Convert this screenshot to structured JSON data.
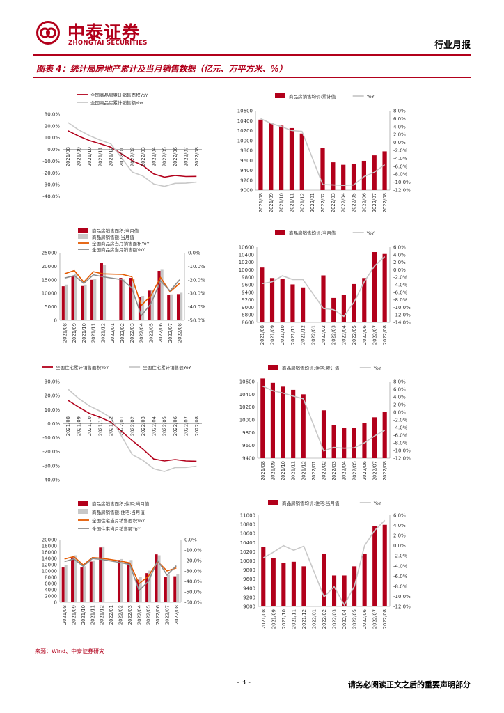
{
  "header": {
    "company_cn": "中泰证券",
    "company_en": "ZHONGTAI SECURITIES",
    "report_type": "行业月报",
    "brand_color": "#b2001b"
  },
  "figure": {
    "title": "图表 4：统计局房地产累计及当月销售数据（亿元、万平方米、%）"
  },
  "source": "来源：Wind、中泰证券研究",
  "footer": {
    "page": "- 3 -",
    "disclaimer": "请务必阅读正文之后的重要声明部分"
  },
  "chart_data": [
    {
      "type": "line",
      "categories": [
        "2021/08",
        "2021/09",
        "2021/10",
        "2021/11",
        "2021/12",
        "2022/01",
        "2022/02",
        "2022/03",
        "2022/04",
        "2022/05",
        "2022/06",
        "2022/07",
        "2022/08"
      ],
      "y_ticks": [
        "30.0%",
        "20.0%",
        "10.0%",
        "0.0%",
        "-10.0%",
        "-20.0%",
        "-30.0%",
        "-40.0%"
      ],
      "ylim": [
        -40,
        30
      ],
      "legend_position": "top",
      "series": [
        {
          "name": "全国商品房累计销售面积YoY",
          "color": "#b2001b",
          "values": [
            15.9,
            11.3,
            7.5,
            4.8,
            1.9,
            null,
            -9.6,
            -13.8,
            -20.9,
            -23.6,
            -22.2,
            -23.1,
            -23.0
          ]
        },
        {
          "name": "全国商品房累计销售额YoY",
          "color": "#c8c8c8",
          "values": [
            22.9,
            16.6,
            11.8,
            8.0,
            4.8,
            null,
            -19.3,
            -22.7,
            -29.5,
            -31.5,
            -28.9,
            -28.8,
            -27.9
          ]
        }
      ]
    },
    {
      "type": "bar+line",
      "categories": [
        "2021/08",
        "2021/09",
        "2021/10",
        "2021/11",
        "2021/12",
        "2022/01",
        "2022/02",
        "2022/03",
        "2022/04",
        "2022/05",
        "2022/06",
        "2022/07",
        "2022/08"
      ],
      "left_ticks": [
        "10600",
        "10400",
        "10200",
        "10000",
        "9800",
        "9600",
        "9400",
        "9200",
        "9000"
      ],
      "right_ticks": [
        "8.0%",
        "6.0%",
        "4.0%",
        "2.0%",
        "0.0%",
        "-2.0%",
        "-4.0%",
        "-6.0%",
        "-8.0%",
        "-10.0%",
        "-12.0%"
      ],
      "ylim_left": [
        9000,
        10600
      ],
      "ylim_right": [
        -12,
        8
      ],
      "legend_position": "top",
      "bars": {
        "name": "商品房销售均价:累计值",
        "color": "#b2001b",
        "values": [
          10420,
          10350,
          10300,
          10250,
          10140,
          null,
          9850,
          9560,
          9510,
          9530,
          9590,
          9700,
          9780
        ]
      },
      "line": {
        "name": "YoY",
        "color": "#c8c8c8",
        "values": [
          6.0,
          4.8,
          4.0,
          3.0,
          2.8,
          null,
          -10.6,
          -10.7,
          -10.8,
          -10.7,
          -8.6,
          -7.5,
          -5.6
        ]
      }
    },
    {
      "type": "bar+line",
      "categories": [
        "2021/08",
        "2021/09",
        "2021/10",
        "2021/11",
        "2021/12",
        "2022/01",
        "2022/02",
        "2022/03",
        "2022/04",
        "2022/05",
        "2022/06",
        "2022/07",
        "2022/08"
      ],
      "left_ticks": [
        "25000",
        "20000",
        "15000",
        "10000",
        "5000",
        "0"
      ],
      "right_ticks": [
        "0.0%",
        "-10.0%",
        "-20.0%",
        "-30.0%",
        "-40.0%",
        "-50.0%"
      ],
      "ylim_left": [
        0,
        25000
      ],
      "ylim_right": [
        -50,
        0
      ],
      "legend_position": "top",
      "bars": [
        {
          "name": "商品房销售面积:当月值",
          "color": "#b2001b",
          "values": [
            12600,
            16200,
            12700,
            15000,
            21300,
            null,
            15700,
            15700,
            8600,
            11000,
            18300,
            9300,
            9700
          ]
        },
        {
          "name": "商品房销售额:当月值",
          "color": "#c8c8c8",
          "values": [
            13200,
            17300,
            13200,
            15400,
            20400,
            null,
            15100,
            15200,
            9000,
            11200,
            18700,
            9600,
            10200
          ]
        }
      ],
      "lines": [
        {
          "name": "全国商品房当月销售面积YoY",
          "color": "#e35a00",
          "values": [
            -15.5,
            -13.2,
            -21.7,
            -14.0,
            -15.6,
            null,
            -16.0,
            -17.7,
            -39.0,
            -31.8,
            -18.3,
            -28.9,
            -22.6
          ]
        },
        {
          "name": "全国商品房当月销售额YoY",
          "color": "#8c8c8c",
          "values": [
            -18.7,
            -16.9,
            -22.7,
            -16.3,
            -17.8,
            null,
            -19.9,
            -26.1,
            -46.6,
            -37.7,
            -20.8,
            -28.2,
            -19.9
          ]
        }
      ]
    },
    {
      "type": "bar+line",
      "categories": [
        "2021/08",
        "2021/09",
        "2021/10",
        "2021/11",
        "2021/12",
        "2022/01",
        "2022/02",
        "2022/03",
        "2022/04",
        "2022/05",
        "2022/06",
        "2022/07",
        "2022/08"
      ],
      "left_ticks": [
        "10600",
        "10400",
        "10200",
        "10000",
        "9800",
        "9600",
        "9400",
        "9200",
        "9000",
        "8800",
        "8600"
      ],
      "right_ticks": [
        "6.0%",
        "4.0%",
        "2.0%",
        "0.0%",
        "-2.0%",
        "-4.0%",
        "-6.0%",
        "-8.0%",
        "-10.0%",
        "-12.0%",
        "-14.0%"
      ],
      "ylim_left": [
        8600,
        10600
      ],
      "ylim_right": [
        -14,
        6
      ],
      "legend_position": "top",
      "bars": {
        "name": "商品房销售均价:当月值",
        "color": "#b2001b",
        "values": [
          10060,
          9780,
          9760,
          9610,
          9530,
          null,
          9850,
          9250,
          9340,
          9620,
          9780,
          10470,
          10420
        ]
      },
      "line": {
        "name": "YoY",
        "color": "#c8c8c8",
        "values": [
          -3.7,
          -3.2,
          -1.6,
          -2.6,
          -2.6,
          null,
          -10.3,
          -10.6,
          -12.4,
          -8.6,
          -3.2,
          1.0,
          3.5
        ]
      }
    },
    {
      "type": "line",
      "categories": [
        "2021/08",
        "2021/09",
        "2021/10",
        "2021/11",
        "2021/12",
        "2022/01",
        "2022/02",
        "2022/03",
        "2022/04",
        "2022/05",
        "2022/06",
        "2022/07",
        "2022/08"
      ],
      "y_ticks": [
        "30.0%",
        "20.0%",
        "10.0%",
        "0.0%",
        "-10.0%",
        "-20.0%",
        "-30.0%",
        "-40.0%"
      ],
      "ylim": [
        -40,
        30
      ],
      "legend_position": "top",
      "series": [
        {
          "name": "全国住宅累计销售面积YoY",
          "color": "#b2001b",
          "values": [
            16.6,
            11.8,
            7.3,
            4.6,
            1.1,
            null,
            -12.1,
            -18.2,
            -25.2,
            -26.6,
            -25.6,
            -26.6,
            -26.8
          ]
        },
        {
          "name": "全国住宅累计销售额YoY",
          "color": "#c8c8c8",
          "values": [
            24.6,
            17.9,
            12.6,
            8.9,
            4.3,
            null,
            -22.1,
            -26.2,
            -32.1,
            -34.1,
            -31.3,
            -31.2,
            -30.3
          ]
        }
      ]
    },
    {
      "type": "bar+line",
      "categories": [
        "2021/08",
        "2021/09",
        "2021/10",
        "2021/11",
        "2021/12",
        "2022/01",
        "2022/02",
        "2022/03",
        "2022/04",
        "2022/05",
        "2022/06",
        "2022/07",
        "2022/08"
      ],
      "left_ticks": [
        "10600",
        "10400",
        "10200",
        "10000",
        "9800",
        "9600",
        "9400"
      ],
      "right_ticks": [
        "8.0%",
        "6.0%",
        "4.0%",
        "2.0%",
        "0.0%",
        "-2.0%",
        "-4.0%",
        "-6.0%",
        "-8.0%",
        "-10.0%",
        "-12.0%"
      ],
      "ylim_left": [
        9400,
        10600
      ],
      "ylim_right": [
        -12,
        8
      ],
      "legend_position": "top",
      "bars": {
        "name": "商品房销售均价:住宅:累计值",
        "color": "#b2001b",
        "values": [
          10650,
          10580,
          10520,
          10470,
          10400,
          null,
          10150,
          9920,
          9870,
          9870,
          9950,
          10040,
          10130
        ]
      },
      "line": {
        "name": "YoY",
        "color": "#c8c8c8",
        "values": [
          6.8,
          5.6,
          5.0,
          4.2,
          3.5,
          null,
          -10.1,
          -9.2,
          -9.4,
          -9.3,
          -8.0,
          -6.2,
          -4.7
        ]
      }
    },
    {
      "type": "bar+line",
      "categories": [
        "2021/08",
        "2021/09",
        "2021/10",
        "2021/11",
        "2021/12",
        "2022/01",
        "2022/02",
        "2022/03",
        "2022/04",
        "2022/05",
        "2022/06",
        "2022/07",
        "2022/08"
      ],
      "left_ticks": [
        "20000",
        "18000",
        "16000",
        "14000",
        "12000",
        "10000",
        "8000",
        "6000",
        "4000",
        "2000",
        "0"
      ],
      "right_ticks": [
        "0.0%",
        "-10.0%",
        "-20.0%",
        "-30.0%",
        "-40.0%",
        "-50.0%",
        "-60.0%"
      ],
      "ylim_left": [
        0,
        20000
      ],
      "ylim_right": [
        -60,
        0
      ],
      "legend_position": "top",
      "bars": [
        {
          "name": "商品房销售面积:住宅:当月值",
          "color": "#b2001b",
          "values": [
            11100,
            14300,
            11100,
            13000,
            17500,
            null,
            13500,
            12700,
            7200,
            9300,
            15300,
            8000,
            8300
          ]
        },
        {
          "name": "商品房销售额:住宅:当月值",
          "color": "#c8c8c8",
          "values": [
            11800,
            15000,
            11500,
            13400,
            17800,
            null,
            13800,
            13500,
            8000,
            10100,
            15000,
            8800,
            9100
          ]
        }
      ],
      "lines": [
        {
          "name": "全国住宅当月销售面积YoY",
          "color": "#e35a00",
          "values": [
            -18.5,
            -16.3,
            -24.3,
            -17.2,
            -17.8,
            null,
            -20.5,
            -22.3,
            -42.3,
            -35.0,
            -21.0,
            -30.0,
            -27.1
          ]
        },
        {
          "name": "全国住宅当月销售额YoY",
          "color": "#8c8c8c",
          "values": [
            -21.0,
            -18.5,
            -25.5,
            -18.1,
            -19.0,
            null,
            -22.0,
            -23.8,
            -48.8,
            -40.0,
            -20.0,
            -34.0,
            -25.0
          ]
        }
      ]
    },
    {
      "type": "bar+line",
      "categories": [
        "2021/08",
        "2021/09",
        "2021/10",
        "2021/11",
        "2021/12",
        "2022/01",
        "2022/02",
        "2022/03",
        "2022/04",
        "2022/05",
        "2022/06",
        "2022/07",
        "2022/08"
      ],
      "left_ticks": [
        "11000",
        "10800",
        "10600",
        "10400",
        "10200",
        "10000",
        "9800",
        "9600",
        "9400",
        "9200",
        "9000"
      ],
      "right_ticks": [
        "6.0%",
        "4.0%",
        "2.0%",
        "0.0%",
        "-2.0%",
        "-4.0%",
        "-6.0%",
        "-8.0%",
        "-10.0%",
        "-12.0%"
      ],
      "ylim_left": [
        9000,
        11000
      ],
      "ylim_right": [
        -12,
        6
      ],
      "legend_position": "top",
      "bars": {
        "name": "商品房销售均价:住宅:当月值",
        "color": "#b2001b",
        "values": [
          10300,
          10060,
          9960,
          9980,
          9880,
          null,
          10160,
          9680,
          9680,
          9880,
          10150,
          10770,
          10790
        ]
      },
      "line": {
        "name": "YoY",
        "color": "#c8c8c8",
        "values": [
          -2.4,
          -1.3,
          0.0,
          -0.9,
          -0.1,
          null,
          -10.1,
          -8.1,
          -11.7,
          -8.0,
          0.0,
          3.0,
          5.0
        ]
      }
    }
  ]
}
